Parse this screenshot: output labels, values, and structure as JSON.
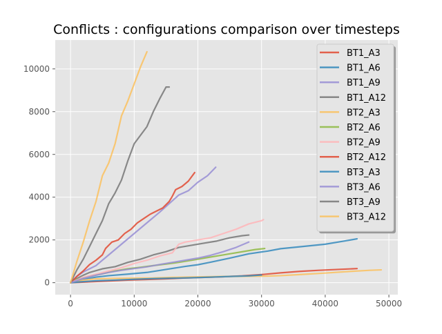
{
  "chart_data": {
    "type": "line",
    "title": "Conflicts : configurations comparison over timesteps",
    "xlabel": "",
    "ylabel": "",
    "xlim": [
      -2400,
      51400
    ],
    "ylim": [
      -560,
      11350
    ],
    "xticks": [
      0,
      10000,
      20000,
      30000,
      40000,
      50000
    ],
    "yticks": [
      0,
      2000,
      4000,
      6000,
      8000,
      10000
    ],
    "xtick_labels": [
      "0",
      "10000",
      "20000",
      "30000",
      "40000",
      "50000"
    ],
    "ytick_labels": [
      "0",
      "2000",
      "4000",
      "6000",
      "8000",
      "10000"
    ],
    "grid": true,
    "style": "ggplot",
    "legend_position": "top-right",
    "series": [
      {
        "name": "BT1_A3",
        "color": "#e24a33",
        "points": [
          [
            0,
            0
          ],
          [
            3000,
            40
          ],
          [
            6000,
            80
          ],
          [
            9000,
            120
          ],
          [
            12000,
            150
          ],
          [
            15000,
            180
          ],
          [
            18000,
            220
          ],
          [
            21000,
            250
          ],
          [
            24000,
            280
          ],
          [
            27000,
            320
          ],
          [
            30000,
            380
          ],
          [
            33000,
            460
          ],
          [
            36000,
            530
          ],
          [
            39000,
            580
          ],
          [
            42000,
            620
          ],
          [
            45000,
            660
          ]
        ]
      },
      {
        "name": "BT1_A6",
        "color": "#348abd",
        "points": [
          [
            0,
            0
          ],
          [
            2000,
            150
          ],
          [
            4000,
            260
          ],
          [
            6000,
            330
          ],
          [
            9000,
            400
          ],
          [
            12000,
            480
          ],
          [
            15000,
            620
          ],
          [
            18000,
            760
          ],
          [
            20000,
            840
          ],
          [
            22000,
            960
          ],
          [
            25000,
            1150
          ],
          [
            28000,
            1350
          ],
          [
            31000,
            1480
          ],
          [
            33000,
            1590
          ],
          [
            36000,
            1680
          ],
          [
            40000,
            1800
          ],
          [
            42000,
            1900
          ],
          [
            45000,
            2050
          ]
        ]
      },
      {
        "name": "BT1_A9",
        "color": "#988ed5",
        "points": [
          [
            0,
            0
          ],
          [
            1000,
            300
          ],
          [
            2000,
            500
          ],
          [
            4000,
            800
          ],
          [
            6000,
            1300
          ],
          [
            8000,
            1800
          ],
          [
            10000,
            2300
          ],
          [
            12000,
            2800
          ],
          [
            14000,
            3300
          ],
          [
            15500,
            3700
          ],
          [
            17000,
            4100
          ],
          [
            18500,
            4300
          ],
          [
            20000,
            4700
          ],
          [
            21500,
            5000
          ],
          [
            22800,
            5400
          ]
        ]
      },
      {
        "name": "BT1_A12",
        "color": "#777777",
        "points": [
          [
            0,
            0
          ],
          [
            1000,
            200
          ],
          [
            2000,
            350
          ],
          [
            3000,
            480
          ],
          [
            5000,
            650
          ],
          [
            7000,
            750
          ],
          [
            9000,
            950
          ],
          [
            11000,
            1100
          ],
          [
            13000,
            1300
          ],
          [
            15000,
            1450
          ],
          [
            17000,
            1650
          ],
          [
            19000,
            1750
          ],
          [
            21000,
            1850
          ],
          [
            23000,
            1950
          ],
          [
            25000,
            2100
          ],
          [
            27000,
            2200
          ],
          [
            28000,
            2230
          ]
        ]
      },
      {
        "name": "BT2_A3",
        "color": "#fbc15e",
        "points": [
          [
            0,
            0
          ],
          [
            2000,
            120
          ],
          [
            4000,
            180
          ],
          [
            7000,
            200
          ],
          [
            10000,
            210
          ],
          [
            13000,
            220
          ],
          [
            16000,
            250
          ],
          [
            20000,
            270
          ],
          [
            24000,
            290
          ],
          [
            28000,
            300
          ],
          [
            31000,
            310
          ],
          [
            33000,
            330
          ],
          [
            36000,
            380
          ],
          [
            40000,
            450
          ],
          [
            44000,
            530
          ],
          [
            47000,
            580
          ],
          [
            48800,
            600
          ]
        ]
      },
      {
        "name": "BT2_A6",
        "color": "#8eba42",
        "points": [
          [
            0,
            0
          ],
          [
            1000,
            150
          ],
          [
            3000,
            300
          ],
          [
            5000,
            420
          ],
          [
            7000,
            550
          ],
          [
            9000,
            650
          ],
          [
            11000,
            720
          ],
          [
            13000,
            800
          ],
          [
            15000,
            870
          ],
          [
            17000,
            950
          ],
          [
            19000,
            1050
          ],
          [
            21000,
            1150
          ],
          [
            23000,
            1250
          ],
          [
            25000,
            1350
          ],
          [
            27000,
            1450
          ],
          [
            29000,
            1550
          ],
          [
            30500,
            1600
          ]
        ]
      },
      {
        "name": "BT2_A9",
        "color": "#ffb5b8",
        "points": [
          [
            0,
            0
          ],
          [
            2000,
            250
          ],
          [
            4000,
            400
          ],
          [
            6000,
            550
          ],
          [
            8000,
            700
          ],
          [
            10000,
            900
          ],
          [
            12000,
            1050
          ],
          [
            14000,
            1250
          ],
          [
            16000,
            1400
          ],
          [
            17000,
            1800
          ],
          [
            18000,
            1900
          ],
          [
            20000,
            2000
          ],
          [
            22000,
            2100
          ],
          [
            24000,
            2300
          ],
          [
            26000,
            2500
          ],
          [
            28000,
            2750
          ],
          [
            30000,
            2900
          ],
          [
            30300,
            2950
          ]
        ]
      },
      {
        "name": "BT2_A12",
        "color": "#e24a33",
        "points": [
          [
            0,
            0
          ],
          [
            1000,
            300
          ],
          [
            2000,
            550
          ],
          [
            3000,
            850
          ],
          [
            4000,
            1050
          ],
          [
            5000,
            1300
          ],
          [
            5500,
            1600
          ],
          [
            6500,
            1900
          ],
          [
            7500,
            2000
          ],
          [
            8500,
            2300
          ],
          [
            9500,
            2500
          ],
          [
            10500,
            2800
          ],
          [
            11500,
            3000
          ],
          [
            12500,
            3200
          ],
          [
            13500,
            3350
          ],
          [
            14500,
            3500
          ],
          [
            15500,
            3800
          ],
          [
            16000,
            4050
          ],
          [
            16500,
            4350
          ],
          [
            17500,
            4500
          ],
          [
            18500,
            4750
          ],
          [
            19500,
            5150
          ]
        ]
      },
      {
        "name": "BT3_A3",
        "color": "#348abd",
        "points": [
          [
            0,
            0
          ],
          [
            2000,
            50
          ],
          [
            4000,
            90
          ],
          [
            7000,
            120
          ],
          [
            10000,
            160
          ],
          [
            13000,
            190
          ],
          [
            16000,
            210
          ],
          [
            19000,
            230
          ],
          [
            22000,
            260
          ],
          [
            25000,
            290
          ],
          [
            28000,
            320
          ],
          [
            30000,
            360
          ]
        ]
      },
      {
        "name": "BT3_A6",
        "color": "#988ed5",
        "points": [
          [
            0,
            0
          ],
          [
            2000,
            200
          ],
          [
            4000,
            350
          ],
          [
            6000,
            480
          ],
          [
            8000,
            580
          ],
          [
            10000,
            660
          ],
          [
            12000,
            740
          ],
          [
            14000,
            850
          ],
          [
            16000,
            950
          ],
          [
            18000,
            1050
          ],
          [
            20000,
            1150
          ],
          [
            22000,
            1280
          ],
          [
            24000,
            1450
          ],
          [
            26000,
            1650
          ],
          [
            28000,
            1900
          ]
        ]
      },
      {
        "name": "BT3_A9",
        "color": "#777777",
        "points": [
          [
            0,
            0
          ],
          [
            1000,
            600
          ],
          [
            2000,
            1100
          ],
          [
            3000,
            1700
          ],
          [
            4000,
            2300
          ],
          [
            5000,
            2900
          ],
          [
            6000,
            3700
          ],
          [
            7000,
            4200
          ],
          [
            8000,
            4800
          ],
          [
            9000,
            5700
          ],
          [
            10000,
            6500
          ],
          [
            11000,
            6900
          ],
          [
            12000,
            7300
          ],
          [
            13000,
            8000
          ],
          [
            14000,
            8600
          ],
          [
            15000,
            9150
          ],
          [
            15500,
            9150
          ]
        ]
      },
      {
        "name": "BT3_A12",
        "color": "#fbc15e",
        "points": [
          [
            0,
            0
          ],
          [
            500,
            500
          ],
          [
            1000,
            1000
          ],
          [
            2000,
            1900
          ],
          [
            3000,
            2900
          ],
          [
            4000,
            3800
          ],
          [
            5000,
            5000
          ],
          [
            6000,
            5600
          ],
          [
            7000,
            6500
          ],
          [
            8000,
            7800
          ],
          [
            9000,
            8500
          ],
          [
            10000,
            9300
          ],
          [
            11000,
            10100
          ],
          [
            12000,
            10800
          ]
        ]
      }
    ]
  }
}
